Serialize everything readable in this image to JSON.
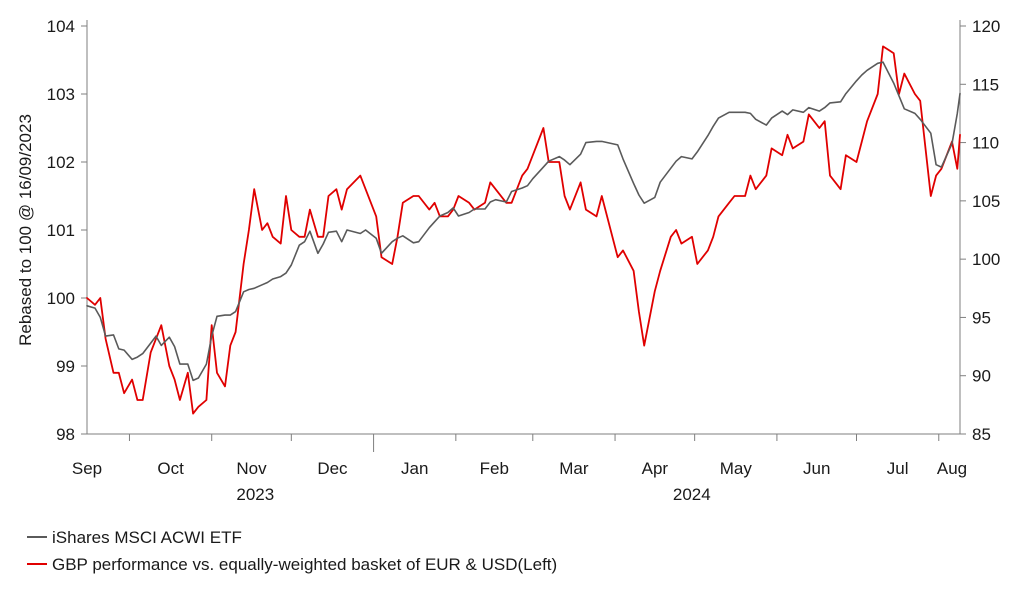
{
  "chart_data": {
    "type": "line",
    "ylabel_left": "Rebased to 100 @ 16/09/2023",
    "ylim_left": [
      98,
      104
    ],
    "yticks_left": [
      "98",
      "99",
      "100",
      "101",
      "102",
      "103",
      "104"
    ],
    "ylim_right": [
      85,
      120
    ],
    "yticks_right": [
      "85",
      "90",
      "95",
      "100",
      "105",
      "110",
      "115",
      "120"
    ],
    "x_months": [
      "Sep",
      "Oct",
      "Nov",
      "Dec",
      "Jan",
      "Feb",
      "Mar",
      "Apr",
      "May",
      "Jun",
      "Jul",
      "Aug"
    ],
    "x_years": [
      "2023",
      "2024"
    ],
    "x_range": [
      "2023-09-15",
      "2024-08-09"
    ],
    "legend": [
      "iShares MSCI ACWI ETF",
      "GBP performance vs. equally-weighted basket of EUR & USD(Left)"
    ],
    "colors": {
      "gbp": "#e00000",
      "acwi": "#5a5a5a",
      "axis": "#7f7f7f"
    },
    "series": [
      {
        "name": "GBP performance vs. equally-weighted basket of EUR & USD(Left)",
        "axis": "left",
        "x": [
          "2023-09-15",
          "2023-09-18",
          "2023-09-20",
          "2023-09-22",
          "2023-09-25",
          "2023-09-27",
          "2023-09-29",
          "2023-10-02",
          "2023-10-04",
          "2023-10-06",
          "2023-10-09",
          "2023-10-11",
          "2023-10-13",
          "2023-10-16",
          "2023-10-18",
          "2023-10-20",
          "2023-10-23",
          "2023-10-25",
          "2023-10-27",
          "2023-10-30",
          "2023-11-01",
          "2023-11-03",
          "2023-11-06",
          "2023-11-08",
          "2023-11-10",
          "2023-11-13",
          "2023-11-15",
          "2023-11-17",
          "2023-11-20",
          "2023-11-22",
          "2023-11-24",
          "2023-11-27",
          "2023-11-29",
          "2023-12-01",
          "2023-12-04",
          "2023-12-06",
          "2023-12-08",
          "2023-12-11",
          "2023-12-13",
          "2023-12-15",
          "2023-12-18",
          "2023-12-20",
          "2023-12-22",
          "2023-12-27",
          "2023-12-29",
          "2024-01-02",
          "2024-01-04",
          "2024-01-08",
          "2024-01-10",
          "2024-01-12",
          "2024-01-16",
          "2024-01-18",
          "2024-01-22",
          "2024-01-24",
          "2024-01-26",
          "2024-01-29",
          "2024-01-31",
          "2024-02-02",
          "2024-02-06",
          "2024-02-08",
          "2024-02-12",
          "2024-02-14",
          "2024-02-16",
          "2024-02-20",
          "2024-02-22",
          "2024-02-26",
          "2024-02-28",
          "2024-03-01",
          "2024-03-05",
          "2024-03-07",
          "2024-03-11",
          "2024-03-13",
          "2024-03-15",
          "2024-03-19",
          "2024-03-21",
          "2024-03-25",
          "2024-03-27",
          "2024-04-02",
          "2024-04-04",
          "2024-04-08",
          "2024-04-10",
          "2024-04-12",
          "2024-04-16",
          "2024-04-18",
          "2024-04-22",
          "2024-04-24",
          "2024-04-26",
          "2024-04-30",
          "2024-05-02",
          "2024-05-06",
          "2024-05-08",
          "2024-05-10",
          "2024-05-14",
          "2024-05-16",
          "2024-05-20",
          "2024-05-22",
          "2024-05-24",
          "2024-05-28",
          "2024-05-30",
          "2024-06-03",
          "2024-06-05",
          "2024-06-07",
          "2024-06-11",
          "2024-06-13",
          "2024-06-17",
          "2024-06-19",
          "2024-06-21",
          "2024-06-25",
          "2024-06-27",
          "2024-07-01",
          "2024-07-03",
          "2024-07-05",
          "2024-07-09",
          "2024-07-11",
          "2024-07-15",
          "2024-07-17",
          "2024-07-19",
          "2024-07-23",
          "2024-07-25",
          "2024-07-29",
          "2024-07-31",
          "2024-08-02",
          "2024-08-06",
          "2024-08-08",
          "2024-08-09"
        ],
        "y": [
          100.0,
          99.9,
          100.0,
          99.4,
          98.9,
          98.9,
          98.6,
          98.8,
          98.5,
          98.5,
          99.2,
          99.4,
          99.6,
          99.0,
          98.8,
          98.5,
          98.9,
          98.3,
          98.4,
          98.5,
          99.6,
          98.9,
          98.7,
          99.3,
          99.5,
          100.5,
          101.0,
          101.6,
          101.0,
          101.1,
          100.9,
          100.8,
          101.5,
          101.0,
          100.9,
          100.9,
          101.3,
          100.9,
          100.9,
          101.5,
          101.6,
          101.3,
          101.6,
          101.8,
          101.6,
          101.2,
          100.6,
          100.5,
          100.9,
          101.4,
          101.5,
          101.5,
          101.3,
          101.4,
          101.2,
          101.2,
          101.3,
          101.5,
          101.4,
          101.3,
          101.4,
          101.7,
          101.6,
          101.4,
          101.4,
          101.8,
          101.9,
          102.1,
          102.5,
          102.0,
          102.0,
          101.5,
          101.3,
          101.7,
          101.3,
          101.2,
          101.5,
          100.6,
          100.7,
          100.4,
          99.8,
          99.3,
          100.1,
          100.4,
          100.9,
          101.0,
          100.8,
          100.9,
          100.5,
          100.7,
          100.9,
          101.2,
          101.4,
          101.5,
          101.5,
          101.8,
          101.6,
          101.8,
          102.2,
          102.1,
          102.4,
          102.2,
          102.3,
          102.7,
          102.5,
          102.6,
          101.8,
          101.6,
          102.1,
          102.0,
          102.3,
          102.6,
          103.0,
          103.7,
          103.6,
          103.0,
          103.3,
          103.0,
          102.9,
          101.5,
          101.8,
          101.9,
          102.3,
          101.9,
          102.4
        ]
      },
      {
        "name": "iShares MSCI ACWI ETF",
        "axis": "right",
        "x": [
          "2023-09-15",
          "2023-09-18",
          "2023-09-20",
          "2023-09-22",
          "2023-09-25",
          "2023-09-27",
          "2023-09-29",
          "2023-10-02",
          "2023-10-04",
          "2023-10-06",
          "2023-10-09",
          "2023-10-11",
          "2023-10-13",
          "2023-10-16",
          "2023-10-18",
          "2023-10-20",
          "2023-10-23",
          "2023-10-25",
          "2023-10-27",
          "2023-10-30",
          "2023-11-01",
          "2023-11-03",
          "2023-11-06",
          "2023-11-08",
          "2023-11-10",
          "2023-11-13",
          "2023-11-15",
          "2023-11-17",
          "2023-11-20",
          "2023-11-22",
          "2023-11-24",
          "2023-11-27",
          "2023-11-29",
          "2023-12-01",
          "2023-12-04",
          "2023-12-06",
          "2023-12-08",
          "2023-12-11",
          "2023-12-13",
          "2023-12-15",
          "2023-12-18",
          "2023-12-20",
          "2023-12-22",
          "2023-12-27",
          "2023-12-29",
          "2024-01-02",
          "2024-01-04",
          "2024-01-08",
          "2024-01-10",
          "2024-01-12",
          "2024-01-16",
          "2024-01-18",
          "2024-01-22",
          "2024-01-24",
          "2024-01-26",
          "2024-01-29",
          "2024-01-31",
          "2024-02-02",
          "2024-02-06",
          "2024-02-08",
          "2024-02-12",
          "2024-02-14",
          "2024-02-16",
          "2024-02-20",
          "2024-02-22",
          "2024-02-26",
          "2024-02-28",
          "2024-03-01",
          "2024-03-05",
          "2024-03-07",
          "2024-03-11",
          "2024-03-13",
          "2024-03-15",
          "2024-03-19",
          "2024-03-21",
          "2024-03-25",
          "2024-03-27",
          "2024-04-02",
          "2024-04-04",
          "2024-04-08",
          "2024-04-10",
          "2024-04-12",
          "2024-04-16",
          "2024-04-18",
          "2024-04-22",
          "2024-04-24",
          "2024-04-26",
          "2024-04-30",
          "2024-05-02",
          "2024-05-06",
          "2024-05-08",
          "2024-05-10",
          "2024-05-14",
          "2024-05-16",
          "2024-05-20",
          "2024-05-22",
          "2024-05-24",
          "2024-05-28",
          "2024-05-30",
          "2024-06-03",
          "2024-06-05",
          "2024-06-07",
          "2024-06-11",
          "2024-06-13",
          "2024-06-17",
          "2024-06-19",
          "2024-06-21",
          "2024-06-25",
          "2024-06-27",
          "2024-07-01",
          "2024-07-03",
          "2024-07-05",
          "2024-07-09",
          "2024-07-11",
          "2024-07-15",
          "2024-07-17",
          "2024-07-19",
          "2024-07-23",
          "2024-07-25",
          "2024-07-29",
          "2024-07-31",
          "2024-08-02",
          "2024-08-06",
          "2024-08-08",
          "2024-08-09"
        ],
        "y": [
          96.0,
          95.8,
          95.0,
          93.4,
          93.5,
          92.3,
          92.2,
          91.4,
          91.6,
          91.9,
          92.8,
          93.4,
          92.6,
          93.3,
          92.5,
          91.0,
          91.0,
          89.6,
          89.8,
          91.0,
          93.4,
          95.1,
          95.2,
          95.2,
          95.5,
          97.2,
          97.4,
          97.5,
          97.8,
          98.0,
          98.3,
          98.5,
          98.8,
          99.5,
          101.2,
          101.5,
          102.4,
          100.5,
          101.3,
          102.3,
          102.4,
          101.5,
          102.5,
          102.2,
          102.5,
          101.8,
          100.5,
          101.5,
          101.8,
          102.0,
          101.4,
          101.5,
          102.7,
          103.2,
          103.7,
          104.0,
          104.4,
          103.7,
          104.0,
          104.3,
          104.3,
          104.9,
          105.1,
          104.9,
          105.8,
          106.1,
          106.3,
          106.9,
          107.9,
          108.4,
          108.8,
          108.5,
          108.1,
          109.0,
          110.0,
          110.1,
          110.1,
          109.8,
          108.6,
          106.5,
          105.5,
          104.8,
          105.3,
          106.6,
          107.8,
          108.4,
          108.8,
          108.6,
          109.2,
          110.6,
          111.4,
          112.1,
          112.6,
          112.6,
          112.6,
          112.5,
          112.0,
          111.5,
          112.1,
          112.7,
          112.4,
          112.8,
          112.6,
          113.0,
          112.7,
          113.0,
          113.4,
          113.5,
          114.2,
          115.3,
          115.8,
          116.2,
          116.8,
          116.9,
          115.1,
          114.0,
          112.9,
          112.5,
          112.0,
          110.8,
          108.1,
          107.9,
          109.9,
          112.5,
          114.2
        ]
      }
    ]
  }
}
